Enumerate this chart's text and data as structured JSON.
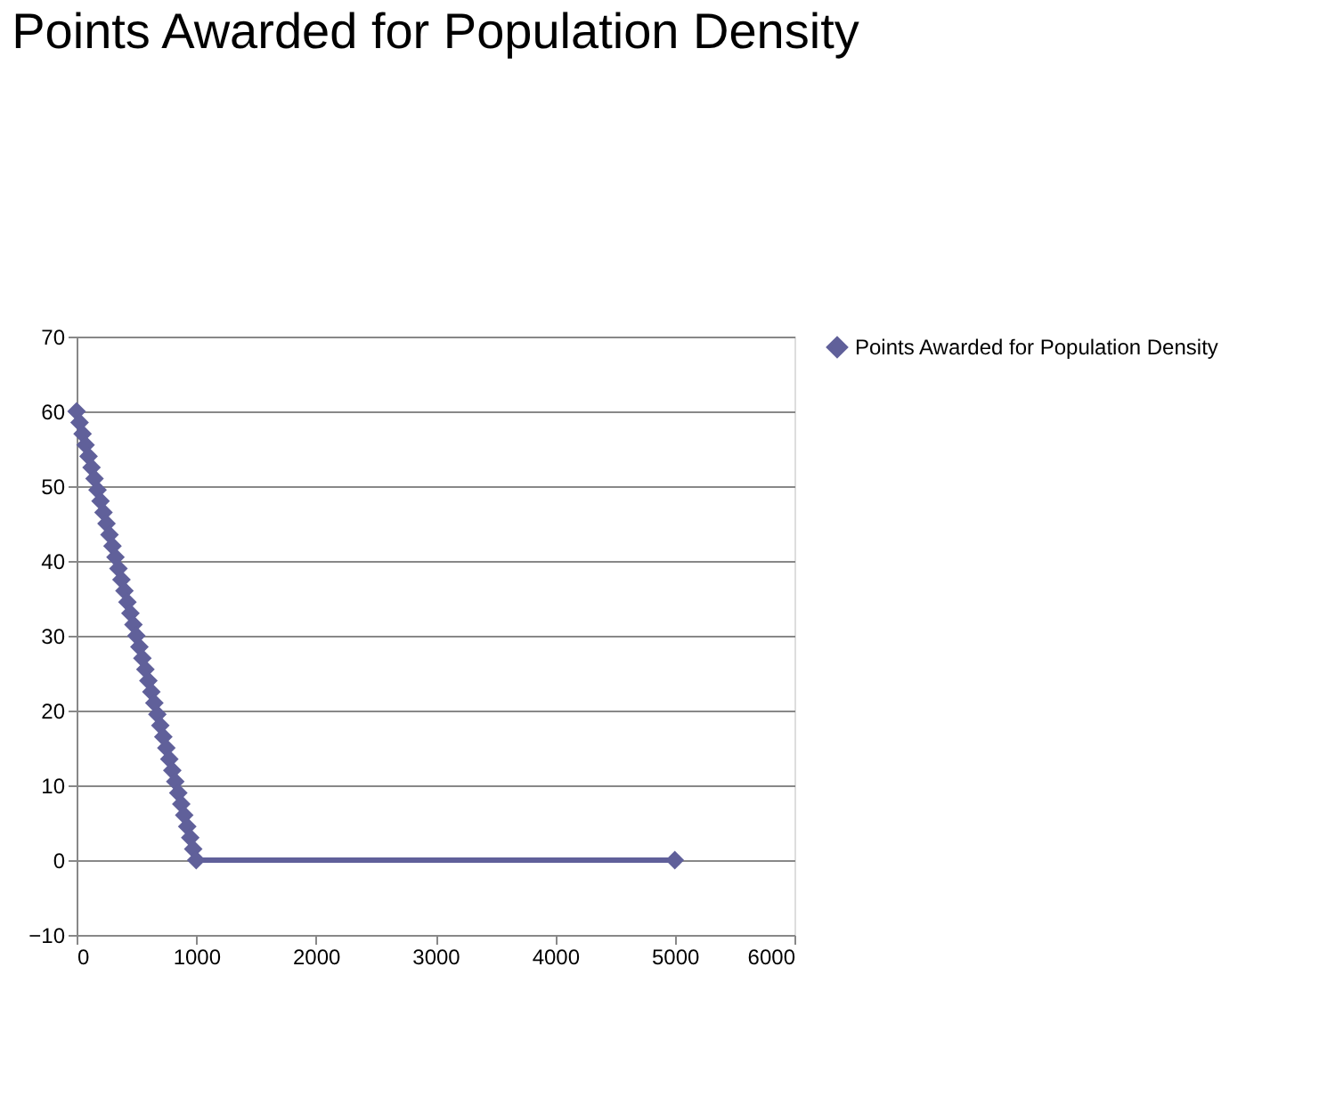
{
  "chart_data": {
    "type": "line",
    "title": "Points Awarded for Population Density",
    "x": [
      0,
      25,
      50,
      75,
      100,
      125,
      150,
      175,
      200,
      225,
      250,
      275,
      300,
      325,
      350,
      375,
      400,
      425,
      450,
      475,
      500,
      525,
      550,
      575,
      600,
      625,
      650,
      675,
      700,
      725,
      750,
      775,
      800,
      825,
      850,
      875,
      900,
      925,
      950,
      975,
      1000,
      5000
    ],
    "series": [
      {
        "name": "Points Awarded for Population Density",
        "color": "#60609a",
        "values": [
          60,
          58.5,
          57,
          55.5,
          54,
          52.5,
          51,
          49.5,
          48,
          46.5,
          45,
          43.5,
          42,
          40.5,
          39,
          37.5,
          36,
          34.5,
          33,
          31.5,
          30,
          28.5,
          27,
          25.5,
          24,
          22.5,
          21,
          19.5,
          18,
          16.5,
          15,
          13.5,
          12,
          10.5,
          9,
          7.5,
          6,
          4.5,
          3,
          1.5,
          0,
          0
        ]
      }
    ],
    "xlim": [
      0,
      6000
    ],
    "xticks": [
      0,
      1000,
      2000,
      3000,
      4000,
      5000,
      6000
    ],
    "ylim": [
      -10,
      70
    ],
    "yticks": [
      -10,
      0,
      10,
      20,
      30,
      40,
      50,
      60,
      70
    ],
    "grid": "y",
    "legend": "right",
    "marker": "diamond",
    "line_style": "solid"
  }
}
